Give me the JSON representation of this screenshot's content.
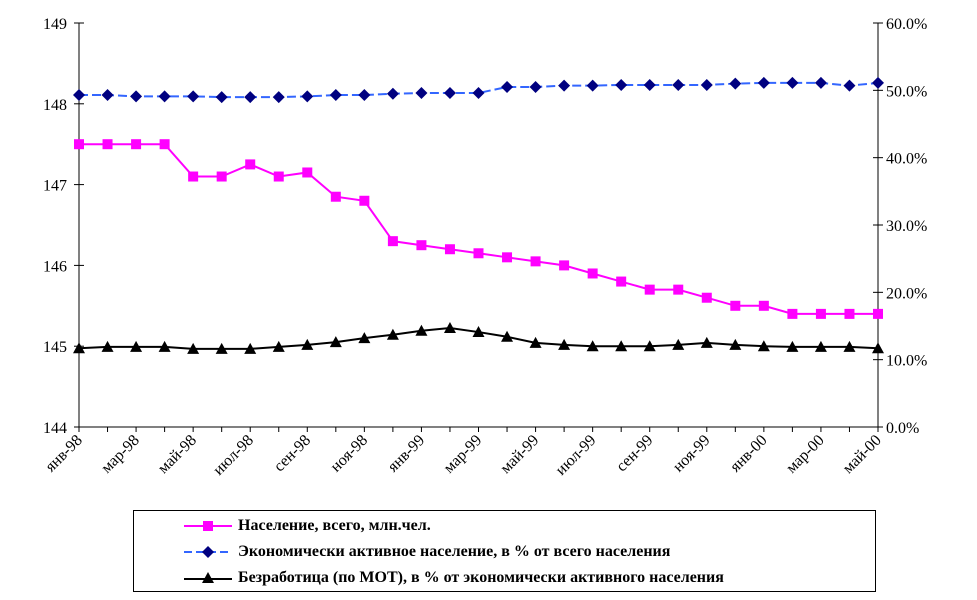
{
  "chart_data": {
    "type": "line",
    "title": "",
    "categories": [
      "янв-98",
      "фев-98",
      "мар-98",
      "апр-98",
      "май-98",
      "июн-98",
      "июл-98",
      "авг-98",
      "сен-98",
      "окт-98",
      "ноя-98",
      "дек-98",
      "янв-99",
      "фев-99",
      "мар-99",
      "апр-99",
      "май-99",
      "июн-99",
      "июл-99",
      "авг-99",
      "сен-99",
      "окт-99",
      "ноя-99",
      "дек-99",
      "янв-00",
      "фев-00",
      "мар-00",
      "апр-00",
      "май-00"
    ],
    "tick_labels": [
      "янв-98",
      "мар-98",
      "май-98",
      "июл-98",
      "сен-98",
      "ноя-98",
      "янв-99",
      "мар-99",
      "май-99",
      "июл-99",
      "сен-99",
      "ноя-99",
      "янв-00",
      "мар-00",
      "май-00"
    ],
    "y_left": {
      "min": 144,
      "max": 149,
      "ticks": [
        "144",
        "145",
        "146",
        "147",
        "148",
        "149"
      ]
    },
    "y_right": {
      "min": 0,
      "max": 60,
      "ticks": [
        "0.0%",
        "10.0%",
        "20.0%",
        "30.0%",
        "40.0%",
        "50.0%",
        "60.0%"
      ]
    },
    "series": [
      {
        "name": "Население, всего, млн.чел.",
        "axis": "left",
        "color": "#ff00ff",
        "marker": "square",
        "values": [
          147.5,
          147.5,
          147.5,
          147.5,
          147.1,
          147.1,
          147.25,
          147.1,
          147.15,
          146.85,
          146.8,
          146.3,
          146.25,
          146.2,
          146.15,
          146.1,
          146.05,
          146.0,
          145.9,
          145.8,
          145.7,
          145.7,
          145.6,
          145.5,
          145.5,
          145.4,
          145.4,
          145.4,
          145.4
        ]
      },
      {
        "name": "Экономически активное население, в % от всего населения",
        "axis": "right",
        "color": "#3366ff",
        "marker_color": "#000080",
        "marker": "diamond",
        "dashed": true,
        "values": [
          49.3,
          49.3,
          49.1,
          49.1,
          49.1,
          49.0,
          49.0,
          49.0,
          49.1,
          49.3,
          49.3,
          49.5,
          49.6,
          49.6,
          49.6,
          50.5,
          50.5,
          50.7,
          50.7,
          50.8,
          50.8,
          50.8,
          50.8,
          51.0,
          51.1,
          51.1,
          51.1,
          50.7,
          51.1
        ]
      },
      {
        "name": "Безработица (по МОТ), в % от экономически активного населения",
        "axis": "right",
        "color": "#000000",
        "marker": "triangle",
        "values": [
          11.7,
          11.9,
          11.9,
          11.9,
          11.6,
          11.6,
          11.6,
          11.9,
          12.2,
          12.6,
          13.2,
          13.7,
          14.3,
          14.7,
          14.1,
          13.4,
          12.5,
          12.2,
          12.0,
          12.0,
          12.0,
          12.2,
          12.5,
          12.2,
          12.0,
          11.9,
          11.9,
          11.9,
          11.7
        ]
      }
    ],
    "legend_position": "bottom",
    "grid": false
  }
}
